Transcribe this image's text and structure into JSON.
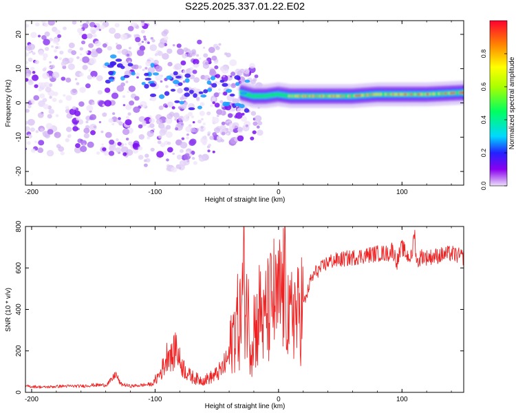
{
  "title": "S225.2025.337.01.22.E02",
  "chart_data": [
    {
      "type": "heatmap",
      "name": "spectrogram",
      "xlabel": "Height of straight line (km)",
      "ylabel": "Frequency (Hz)",
      "xlim": [
        -205,
        150
      ],
      "ylim": [
        -24,
        24
      ],
      "xticks": [
        -200,
        -100,
        0,
        100
      ],
      "xtick_labels": [
        "-200",
        "-100",
        "0",
        "100"
      ],
      "yticks": [
        -20,
        -10,
        0,
        10,
        20
      ],
      "ytick_labels": [
        "-20",
        "-10",
        "0",
        "10",
        "20"
      ],
      "ridge": {
        "x": [
          -200,
          -180,
          -160,
          -140,
          -120,
          -100,
          -90,
          -80,
          -70,
          -60,
          -50,
          -40,
          -30,
          -20,
          -10,
          0,
          10,
          20,
          40,
          60,
          80,
          100,
          120,
          150
        ],
        "y": [
          10,
          9,
          9,
          9,
          8,
          7,
          5,
          4,
          3,
          4,
          5,
          4,
          3,
          2,
          2,
          2.5,
          2,
          2,
          2,
          2,
          2.5,
          2.5,
          2.5,
          3
        ]
      },
      "colorbar": {
        "label": "Normalized spectral amplitude",
        "range": [
          0.0,
          1.0
        ],
        "ticks": [
          0.0,
          0.2,
          0.4,
          0.6,
          0.8
        ],
        "tick_labels": [
          "0.0",
          "0.2",
          "0.4",
          "0.6",
          "0.8"
        ]
      }
    },
    {
      "type": "line",
      "name": "snr",
      "xlabel": "Height of straight line (km)",
      "ylabel": "SNR (10 * v/v)",
      "xlim": [
        -205,
        150
      ],
      "ylim": [
        0,
        800
      ],
      "xticks": [
        -200,
        -100,
        0,
        100
      ],
      "xtick_labels": [
        "-200",
        "-100",
        "0",
        "100"
      ],
      "yticks": [
        0,
        200,
        400,
        600,
        800
      ],
      "ytick_labels": [
        "0",
        "200",
        "400",
        "600",
        "800"
      ],
      "series": [
        {
          "name": "SNR",
          "color": "#ee2222",
          "x": [
            -205,
            -190,
            -175,
            -160,
            -150,
            -140,
            -135,
            -132,
            -128,
            -120,
            -110,
            -102,
            -96,
            -92,
            -89,
            -86,
            -83,
            -80,
            -76,
            -72,
            -68,
            -64,
            -60,
            -56,
            -52,
            -48,
            -45,
            -42,
            -40,
            -38,
            -36,
            -34,
            -32,
            -30,
            -28,
            -26,
            -24,
            -22,
            -20,
            -18,
            -16,
            -14,
            -12,
            -10,
            -8,
            -6,
            -4,
            -2,
            0,
            3,
            6,
            9,
            12,
            15,
            18,
            22,
            26,
            30,
            35,
            40,
            50,
            60,
            70,
            80,
            90,
            92,
            96,
            100,
            104,
            108,
            110,
            112,
            116,
            120,
            130,
            140,
            150
          ],
          "y": [
            30,
            25,
            30,
            30,
            35,
            35,
            60,
            90,
            40,
            30,
            35,
            40,
            90,
            140,
            210,
            160,
            230,
            150,
            110,
            80,
            70,
            60,
            60,
            70,
            80,
            100,
            120,
            150,
            180,
            250,
            300,
            350,
            320,
            400,
            560,
            450,
            330,
            220,
            350,
            300,
            380,
            410,
            300,
            400,
            380,
            430,
            460,
            400,
            450,
            480,
            530,
            300,
            440,
            350,
            420,
            450,
            540,
            580,
            600,
            630,
            640,
            650,
            660,
            670,
            670,
            690,
            630,
            700,
            660,
            650,
            780,
            620,
            660,
            650,
            660,
            670,
            650
          ]
        }
      ]
    }
  ]
}
